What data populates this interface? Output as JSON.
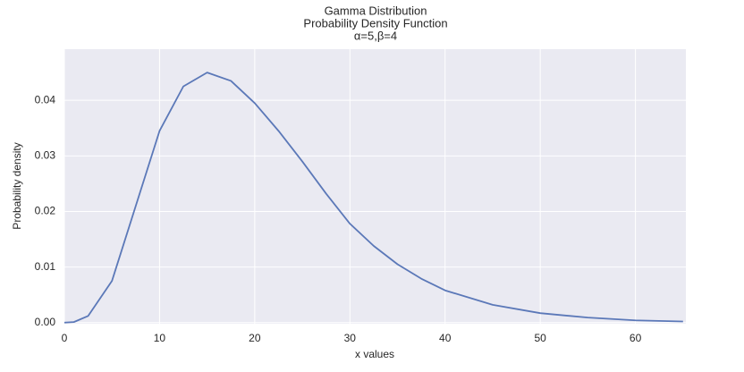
{
  "chart_data": {
    "type": "line",
    "title": [
      "Gamma Distribution",
      "Probability Density Function",
      "α=5,β=4"
    ],
    "xlabel": "x values",
    "ylabel": "Probability density",
    "x": [
      0,
      1,
      2.5,
      5,
      7.5,
      10,
      12.5,
      15,
      17.5,
      20,
      22.5,
      25,
      27.5,
      30,
      32.5,
      35,
      37.5,
      40,
      45,
      50,
      55,
      60,
      65
    ],
    "series": [
      {
        "color": "#5b78b8",
        "values": [
          0,
          0.0001,
          0.0012,
          0.0075,
          0.021,
          0.0345,
          0.0425,
          0.045,
          0.0435,
          0.0395,
          0.0345,
          0.029,
          0.0232,
          0.0178,
          0.0138,
          0.0105,
          0.0079,
          0.0058,
          0.0032,
          0.0017,
          0.0009,
          0.0004,
          0.0002
        ]
      }
    ],
    "xlim": [
      0,
      65.3
    ],
    "ylim": [
      -0.0002,
      0.0492
    ],
    "xticks": [
      0,
      10,
      20,
      30,
      40,
      50,
      60
    ],
    "yticks": [
      {
        "value": 0,
        "label": "0.00"
      },
      {
        "value": 0.01,
        "label": "0.01"
      },
      {
        "value": 0.02,
        "label": "0.02"
      },
      {
        "value": 0.03,
        "label": "0.03"
      },
      {
        "value": 0.04,
        "label": "0.04"
      }
    ],
    "grid": true
  }
}
